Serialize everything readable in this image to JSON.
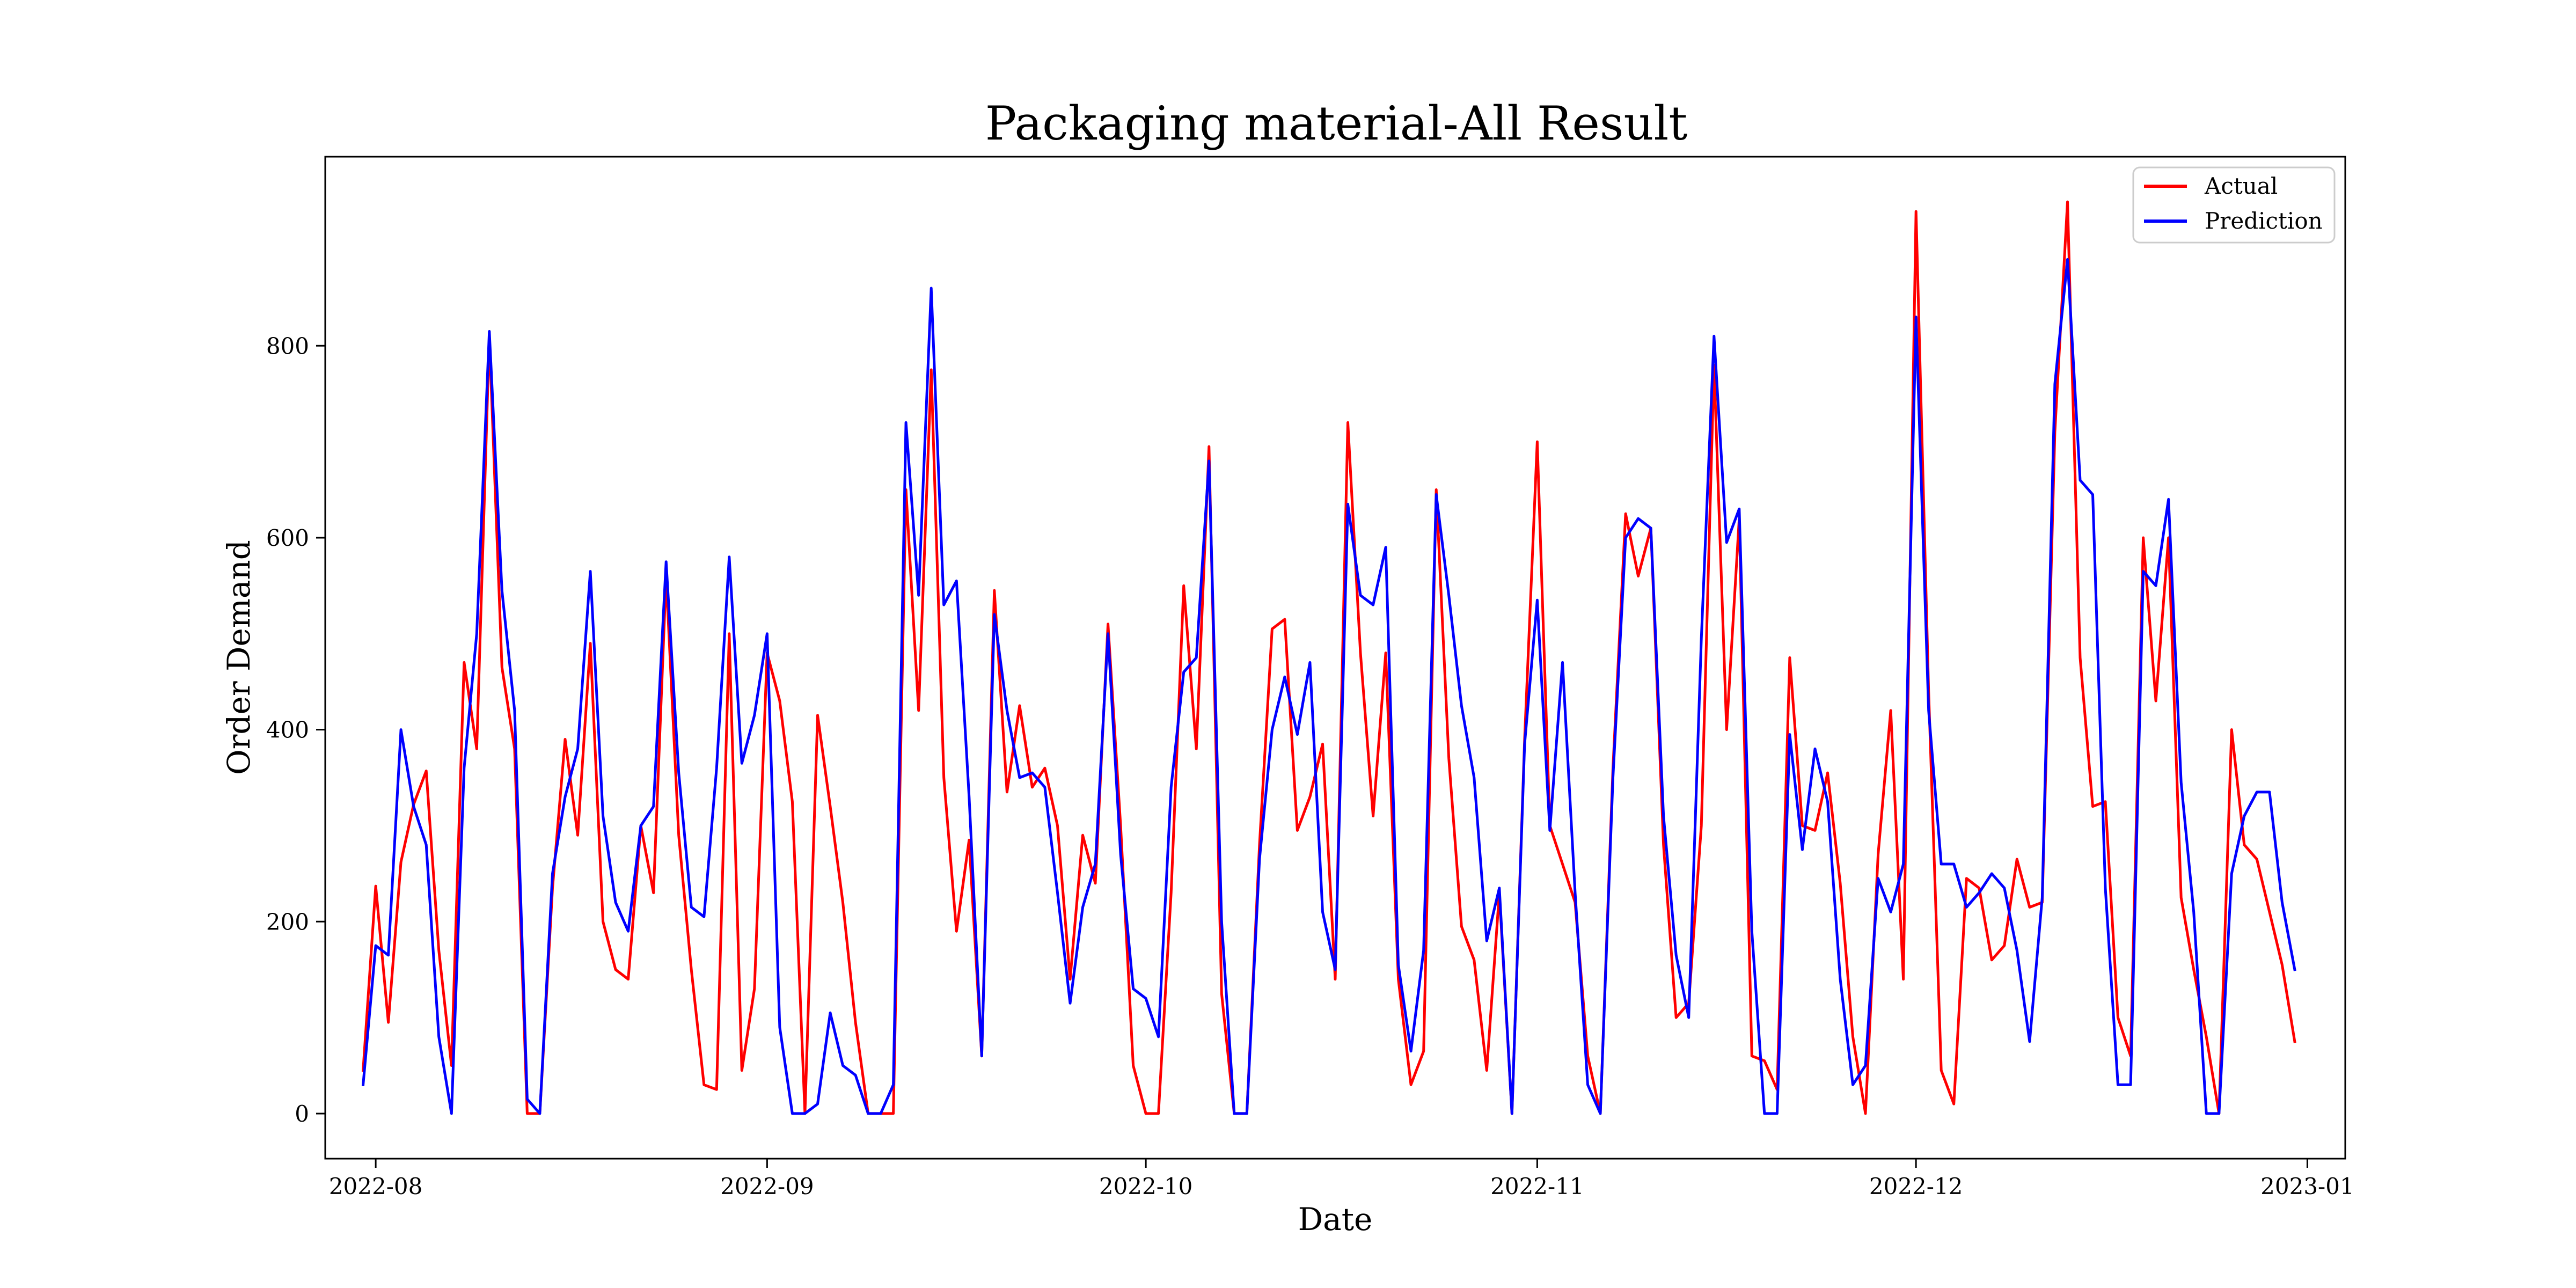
{
  "chart_data": {
    "type": "line",
    "title": "Packaging material-All Result",
    "xlabel": "Date",
    "ylabel": "Order Demand",
    "x_start": "2022-07-31",
    "x_step_days": 1,
    "xlim": [
      "2022-07-28",
      "2023-01-04"
    ],
    "ylim": [
      -47,
      997
    ],
    "x_ticks": [
      "2022-08",
      "2022-09",
      "2022-10",
      "2022-11",
      "2022-12",
      "2023-01"
    ],
    "x_tick_dates": [
      "2022-08-01",
      "2022-09-01",
      "2022-10-01",
      "2022-11-01",
      "2022-12-01",
      "2023-01-01"
    ],
    "y_ticks": [
      0,
      200,
      400,
      600,
      800
    ],
    "grid": false,
    "legend_position": "top-right",
    "series": [
      {
        "name": "Actual",
        "color": "#ff0000",
        "values": [
          45,
          237,
          95,
          262,
          322,
          357,
          170,
          50,
          470,
          380,
          810,
          465,
          380,
          0,
          0,
          235,
          390,
          290,
          490,
          200,
          150,
          140,
          300,
          230,
          560,
          290,
          150,
          30,
          25,
          500,
          45,
          130,
          480,
          430,
          325,
          0,
          415,
          320,
          220,
          95,
          0,
          0,
          0,
          650,
          420,
          775,
          350,
          190,
          285,
          60,
          545,
          335,
          425,
          340,
          360,
          300,
          140,
          290,
          240,
          510,
          300,
          50,
          0,
          0,
          230,
          550,
          380,
          695,
          125,
          0,
          0,
          280,
          505,
          515,
          295,
          330,
          385,
          140,
          720,
          480,
          310,
          480,
          140,
          30,
          65,
          650,
          370,
          195,
          160,
          45,
          230,
          0,
          390,
          700,
          300,
          260,
          220,
          60,
          0,
          360,
          625,
          560,
          610,
          280,
          100,
          115,
          300,
          780,
          400,
          620,
          60,
          55,
          25,
          475,
          300,
          295,
          355,
          240,
          80,
          0,
          270,
          420,
          140,
          940,
          440,
          45,
          10,
          245,
          235,
          160,
          175,
          265,
          215,
          220,
          710,
          950,
          475,
          320,
          325,
          100,
          60,
          600,
          430,
          600,
          225,
          150,
          80,
          0,
          400,
          280,
          265,
          210,
          155,
          75
        ]
      },
      {
        "name": "Prediction",
        "color": "#0000ff",
        "values": [
          30,
          175,
          165,
          400,
          320,
          280,
          80,
          0,
          360,
          500,
          815,
          545,
          420,
          15,
          0,
          250,
          330,
          380,
          565,
          310,
          220,
          190,
          300,
          320,
          575,
          355,
          215,
          205,
          360,
          580,
          365,
          415,
          500,
          90,
          0,
          0,
          10,
          105,
          50,
          40,
          0,
          0,
          30,
          720,
          540,
          860,
          530,
          555,
          330,
          60,
          520,
          420,
          350,
          355,
          340,
          230,
          115,
          215,
          260,
          500,
          270,
          130,
          120,
          80,
          340,
          460,
          475,
          680,
          200,
          0,
          0,
          265,
          400,
          455,
          395,
          470,
          210,
          150,
          635,
          540,
          530,
          590,
          155,
          65,
          170,
          645,
          540,
          425,
          350,
          180,
          235,
          0,
          385,
          535,
          295,
          470,
          230,
          30,
          0,
          350,
          600,
          620,
          610,
          310,
          165,
          100,
          495,
          810,
          595,
          630,
          190,
          0,
          0,
          395,
          275,
          380,
          325,
          140,
          30,
          50,
          245,
          210,
          260,
          830,
          420,
          260,
          260,
          215,
          230,
          250,
          235,
          170,
          75,
          225,
          760,
          890,
          660,
          645,
          235,
          30,
          30,
          565,
          550,
          640,
          345,
          210,
          0,
          0,
          250,
          310,
          335,
          335,
          220,
          150
        ]
      }
    ]
  }
}
